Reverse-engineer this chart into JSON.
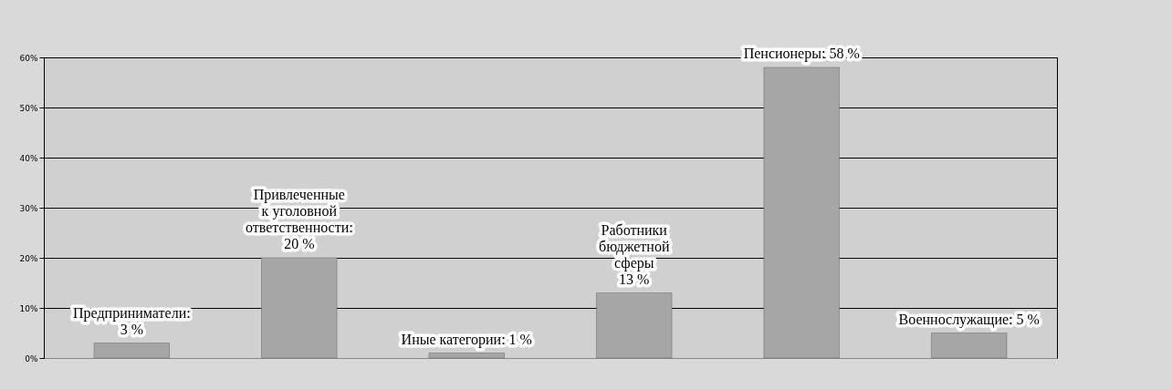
{
  "chart_data": {
    "type": "bar",
    "categories": [
      null,
      null,
      null,
      null,
      null,
      null
    ],
    "values": [
      3,
      20,
      1,
      13,
      58,
      5
    ],
    "value_labels": [
      "Предприниматели:\n3 %",
      "Привлеченные\nк уголовной\nответственности:\n20 %",
      "Иные категории: 1 %",
      "Работники\nбюджетной\nсферы\n13 %",
      "Пенсионеры: 58 %",
      "Военнослужащие: 5 %"
    ],
    "color": "#a6a6a6",
    "ylim": [
      0,
      60
    ],
    "yticks": [
      {
        "value": 0,
        "label": "0%"
      },
      {
        "value": 10,
        "label": "10%"
      },
      {
        "value": 20,
        "label": "20%"
      },
      {
        "value": 30,
        "label": "30%"
      },
      {
        "value": 40,
        "label": "40%"
      },
      {
        "value": 50,
        "label": "50%"
      },
      {
        "value": 60,
        "label": "60%"
      }
    ],
    "grid": "y"
  }
}
